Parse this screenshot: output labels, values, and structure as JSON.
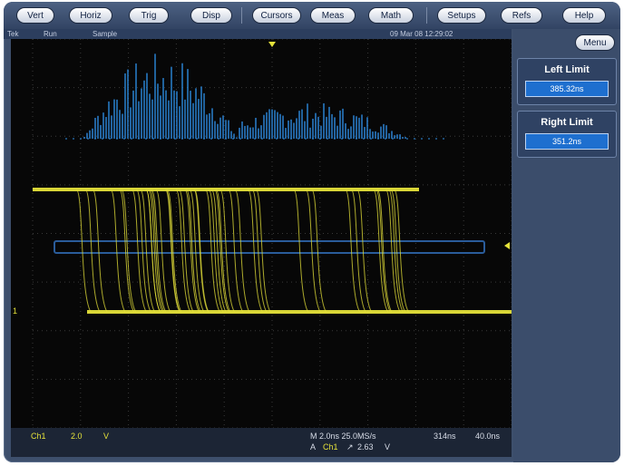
{
  "menubar": {
    "buttons": [
      "Vert",
      "Horiz",
      "Trig",
      "Disp",
      "Cursors",
      "Meas",
      "Math",
      "Setups",
      "Refs",
      "Help"
    ]
  },
  "status": {
    "brand": "Tek",
    "mode": "Run",
    "acq": "Sample",
    "datetime": "09 Mar 08 12:29:02"
  },
  "side": {
    "menu_label": "Menu",
    "left_limit_title": "Left Limit",
    "left_limit_value": "385.32ns",
    "right_limit_title": "Right Limit",
    "right_limit_value": "351.2ns"
  },
  "markers": {
    "ch1_marker": "1"
  },
  "bottom": {
    "ch_label": "Ch1",
    "ch_scale": "2.0",
    "ch_unit": "V",
    "timebase": "M 2.0ns 25.0MS/s",
    "trigger_prefix": "A",
    "trigger_ch": "Ch1",
    "trigger_slope": "↗",
    "trigger_level": "2.63",
    "trigger_unit": "V",
    "record_pos": "314ns",
    "record_len": "40.0ns"
  },
  "colors": {
    "trace": "#e5e23a",
    "histogram": "#2f8fe6",
    "graticule": "#3a3a3a",
    "hist_box": "#2a5c9a"
  }
}
